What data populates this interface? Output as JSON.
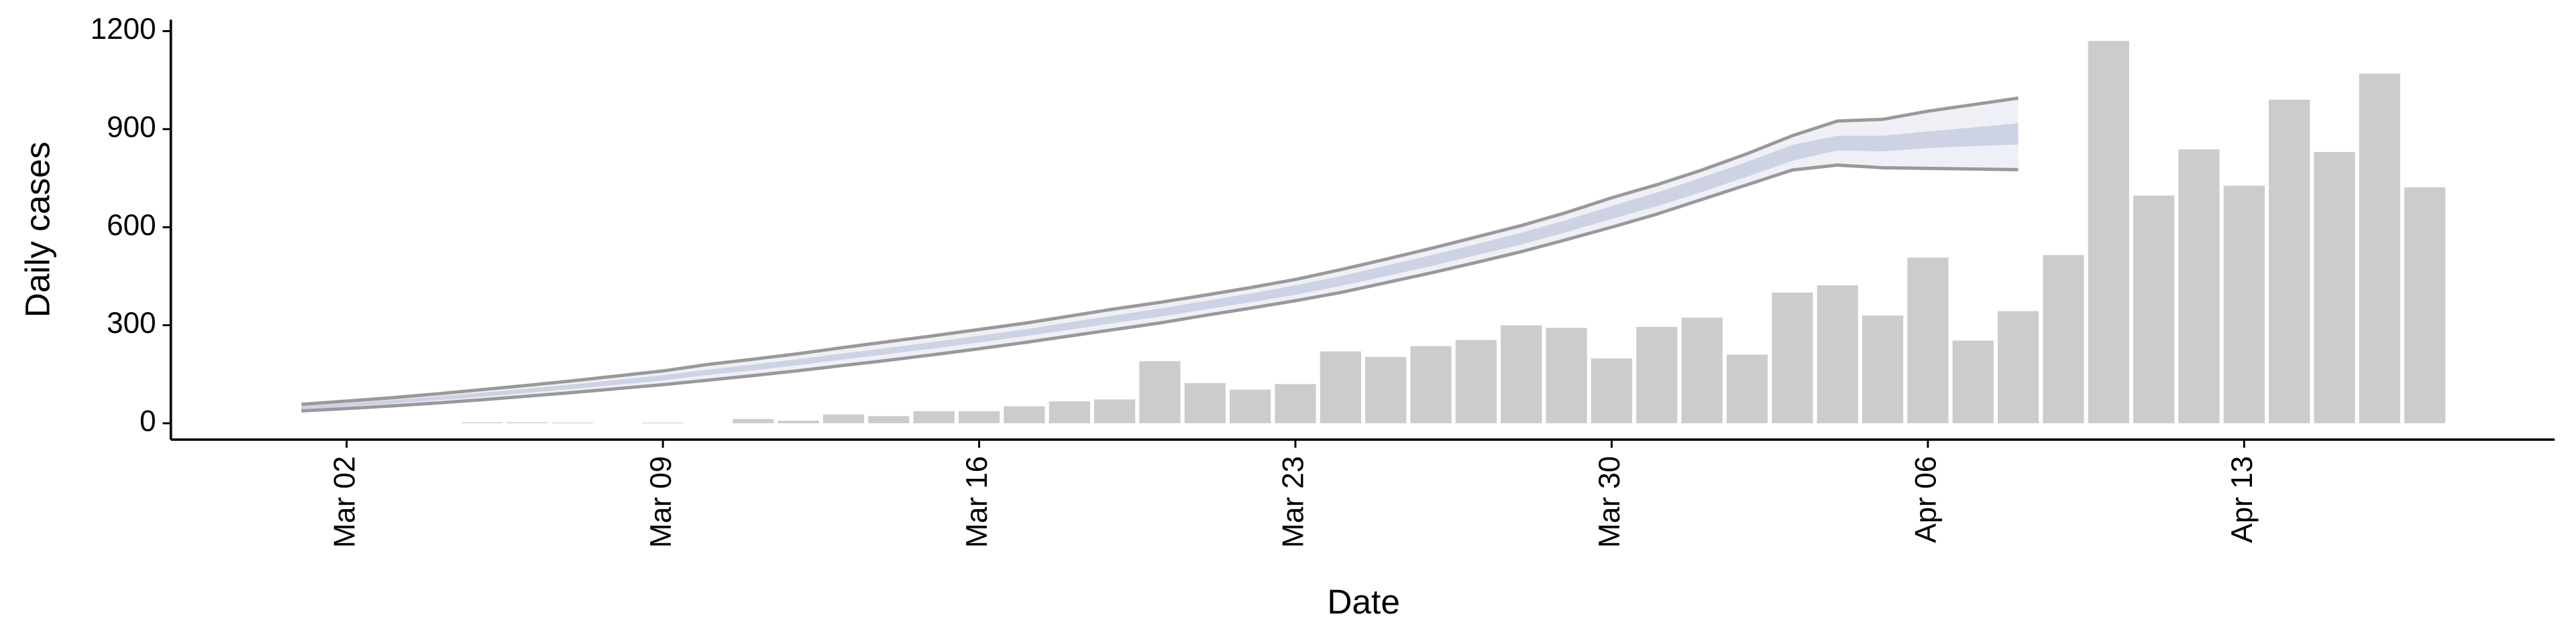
{
  "chart_data": {
    "type": "bar",
    "x_label": "Date",
    "y_label": "Daily cases",
    "categories": [
      null,
      "Mar 02",
      null,
      null,
      null,
      null,
      null,
      null,
      "Mar 09",
      null,
      null,
      null,
      null,
      null,
      null,
      "Mar 16",
      null,
      null,
      null,
      null,
      null,
      null,
      "Mar 23",
      null,
      null,
      null,
      null,
      null,
      null,
      "Mar 30",
      null,
      null,
      null,
      null,
      null,
      null,
      "Apr 06",
      null,
      null,
      null,
      null,
      null,
      null,
      "Apr 13",
      null,
      null,
      null,
      null
    ],
    "values": [
      0,
      0,
      0,
      0,
      3,
      3,
      2,
      0,
      2,
      0,
      13,
      8,
      27,
      22,
      37,
      37,
      52,
      67,
      73,
      190,
      123,
      103,
      120,
      220,
      203,
      236,
      255,
      300,
      292,
      198,
      295,
      323,
      210,
      400,
      422,
      330,
      507,
      253,
      343,
      515,
      1170,
      697,
      838,
      727,
      990,
      830,
      1070,
      722
    ],
    "color": "#cccccc",
    "bands": [
      {
        "color": "#eff0f5",
        "line_color": "#999999",
        "upper": [
          58,
          68,
          78,
          90,
          103,
          116,
          130,
          145,
          160,
          180,
          196,
          213,
          232,
          250,
          268,
          287,
          306,
          328,
          350,
          370,
          392,
          415,
          440,
          470,
          502,
          535,
          570,
          605,
          645,
          690,
          730,
          775,
          825,
          880,
          925,
          930,
          955,
          975,
          995,
          null,
          null,
          null,
          null,
          null,
          null,
          null,
          null,
          null
        ],
        "lower": [
          38,
          45,
          53,
          62,
          72,
          83,
          94,
          106,
          118,
          132,
          146,
          161,
          177,
          193,
          210,
          228,
          247,
          267,
          287,
          307,
          330,
          352,
          375,
          400,
          430,
          460,
          492,
          525,
          562,
          600,
          640,
          685,
          730,
          775,
          790,
          782,
          780,
          778,
          776,
          null,
          null,
          null,
          null,
          null,
          null,
          null,
          null,
          null
        ]
      },
      {
        "color": "#cdd2e5",
        "upper": [
          53,
          62,
          71,
          82,
          94,
          106,
          119,
          133,
          147,
          164,
          180,
          196,
          214,
          231,
          249,
          268,
          287,
          309,
          330,
          351,
          374,
          397,
          422,
          450,
          482,
          514,
          548,
          583,
          622,
          665,
          706,
          752,
          800,
          852,
          880,
          880,
          893,
          905,
          918,
          null,
          null,
          null,
          null,
          null,
          null,
          null,
          null,
          null
        ],
        "lower": [
          43,
          51,
          60,
          70,
          81,
          93,
          105,
          118,
          131,
          148,
          162,
          178,
          195,
          212,
          229,
          247,
          266,
          286,
          307,
          326,
          348,
          370,
          393,
          420,
          450,
          481,
          514,
          547,
          585,
          625,
          664,
          708,
          755,
          803,
          835,
          832,
          842,
          848,
          853,
          null,
          null,
          null,
          null,
          null,
          null,
          null,
          null,
          null
        ]
      }
    ],
    "ylim": [
      -50,
      1235
    ],
    "yticks": [
      0,
      300,
      600,
      900,
      1200
    ]
  }
}
